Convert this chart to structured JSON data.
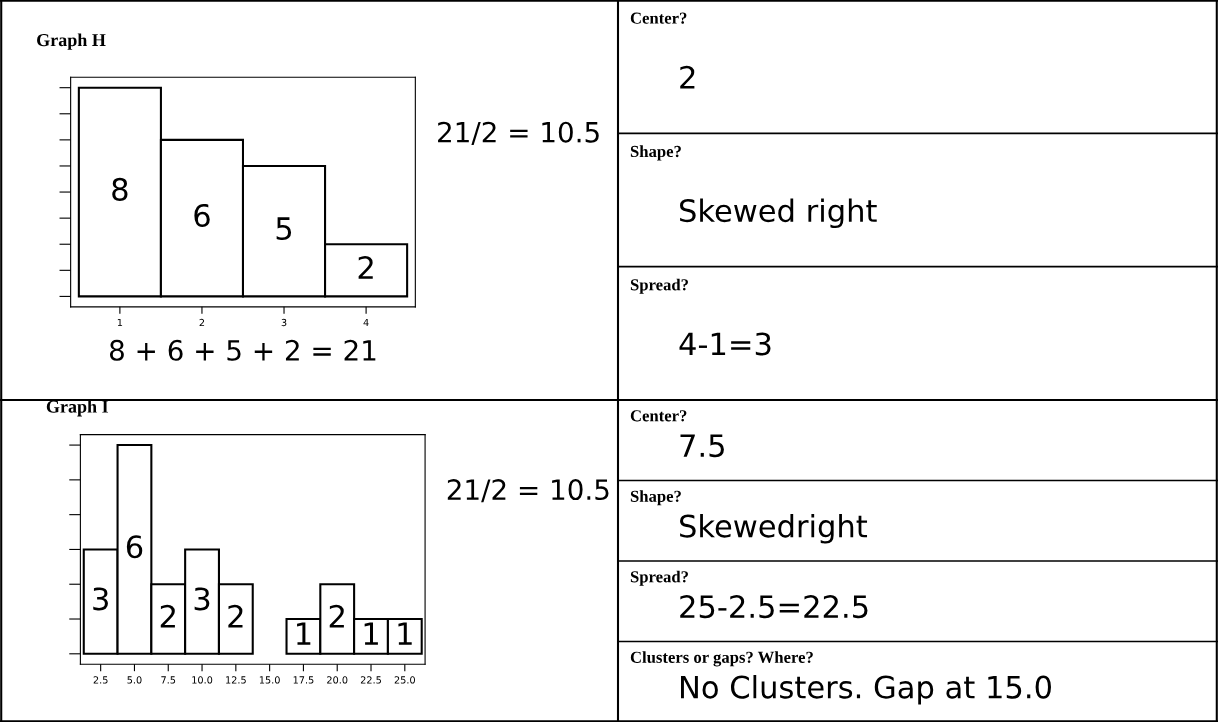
{
  "chart_data": [
    {
      "type": "bar",
      "title": "Graph H",
      "categories": [
        "1",
        "2",
        "3",
        "4"
      ],
      "values": [
        8,
        6,
        5,
        2
      ],
      "color": "#ffffff",
      "data_labels": true,
      "ylim": [
        -0.4,
        8.4
      ],
      "yticks": [
        {
          "value": 0,
          "label": null
        },
        {
          "value": 1,
          "label": null
        },
        {
          "value": 2,
          "label": null
        },
        {
          "value": 3,
          "label": null
        },
        {
          "value": 4,
          "label": null
        },
        {
          "value": 5,
          "label": null
        },
        {
          "value": 6,
          "label": null
        },
        {
          "value": 7,
          "label": null
        },
        {
          "value": 8,
          "label": null
        }
      ],
      "tick_labels": "x",
      "annotations": [
        "21/2 = 10.5",
        "8 + 6 + 5 + 2 = 21"
      ]
    },
    {
      "type": "other",
      "annotations": [
        "Center?",
        "2",
        "Shape?",
        "Skewed right",
        "Spread?",
        "4-1=3"
      ]
    },
    {
      "type": "bar",
      "title": "Graph I",
      "categories": [
        "2.5",
        "5.0",
        "7.5",
        "10.0",
        "12.5",
        "15.0",
        "17.5",
        "20.0",
        "22.5",
        "25.0"
      ],
      "values": [
        3,
        6,
        2,
        3,
        2,
        0,
        1,
        2,
        1,
        1
      ],
      "color": "#ffffff",
      "value_labels": [
        "3",
        "6",
        "2",
        "3",
        "2",
        null,
        "1",
        "2",
        "1",
        "1"
      ],
      "ylim": [
        -0.3,
        6.3
      ],
      "yticks": [
        {
          "value": 0,
          "label": null
        },
        {
          "value": 1,
          "label": null
        },
        {
          "value": 2,
          "label": null
        },
        {
          "value": 3,
          "label": null
        },
        {
          "value": 4,
          "label": null
        },
        {
          "value": 5,
          "label": null
        },
        {
          "value": 6,
          "label": null
        }
      ],
      "tick_labels": "x",
      "annotations": [
        "21/2 = 10.5"
      ]
    },
    {
      "type": "other",
      "annotations": [
        "Center?",
        "7.5",
        "Shape?",
        "Skewedright",
        "Spread?",
        "25-2.5=22.5",
        "Clusters or gaps? Where?",
        "No Clusters. Gap at 15.0"
      ]
    }
  ]
}
